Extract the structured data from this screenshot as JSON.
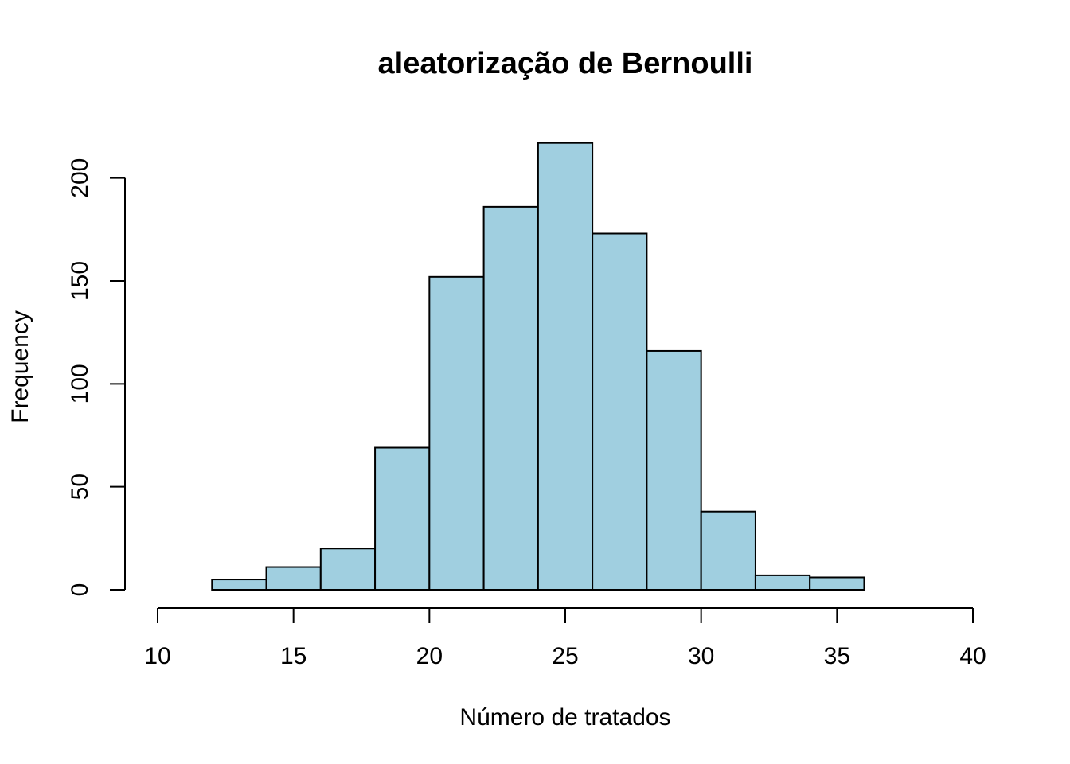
{
  "chart_data": {
    "type": "bar",
    "subtype": "histogram",
    "title": "aleatorização de Bernoulli",
    "xlabel": "Número de tratados",
    "ylabel": "Frequency",
    "bin_edges": [
      12,
      14,
      16,
      18,
      20,
      22,
      24,
      26,
      28,
      30,
      32,
      34,
      36
    ],
    "values": [
      5,
      11,
      20,
      69,
      152,
      186,
      217,
      173,
      116,
      38,
      7,
      6
    ],
    "xlim": [
      10,
      40
    ],
    "ylim": [
      0,
      220
    ],
    "x_ticks": [
      "10",
      "15",
      "20",
      "25",
      "30",
      "35",
      "40"
    ],
    "y_ticks": [
      "0",
      "50",
      "100",
      "150",
      "200"
    ],
    "bar_color": "#A0CFE0",
    "grid": false,
    "legend": "none"
  }
}
